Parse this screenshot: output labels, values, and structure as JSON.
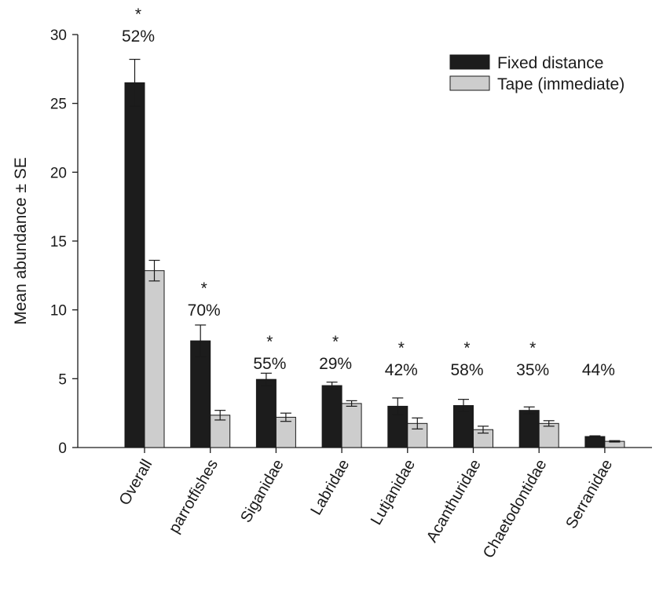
{
  "chart_data": {
    "type": "bar",
    "title": "",
    "xlabel": "",
    "ylabel": "Mean abundance ± SE",
    "ylim": [
      0,
      30
    ],
    "yticks": [
      0,
      5,
      10,
      15,
      20,
      25,
      30
    ],
    "grid": false,
    "legend_position": "top-right",
    "categories": [
      "Overall",
      "parrotfishes",
      "Siganidae",
      "Labridae",
      "Lutjanidae",
      "Acanthuridae",
      "Chaetodontidae",
      "Serranidae"
    ],
    "series": [
      {
        "name": "Fixed distance",
        "color": "#1c1c1c",
        "values": [
          26.5,
          7.75,
          4.95,
          4.5,
          3.0,
          3.05,
          2.7,
          0.8
        ],
        "se": [
          1.7,
          1.15,
          0.45,
          0.25,
          0.6,
          0.45,
          0.25,
          0.05
        ]
      },
      {
        "name": "Tape (immediate)",
        "color": "#cdcdcd",
        "values": [
          12.85,
          2.35,
          2.2,
          3.2,
          1.75,
          1.3,
          1.75,
          0.45
        ],
        "se": [
          0.75,
          0.35,
          0.3,
          0.2,
          0.4,
          0.25,
          0.2,
          0.05
        ]
      }
    ],
    "annotations": [
      {
        "category": "Overall",
        "percent": "52%",
        "star": "*"
      },
      {
        "category": "parrotfishes",
        "percent": "70%",
        "star": "*"
      },
      {
        "category": "Siganidae",
        "percent": "55%",
        "star": "*"
      },
      {
        "category": "Labridae",
        "percent": "29%",
        "star": "*"
      },
      {
        "category": "Lutjanidae",
        "percent": "42%",
        "star": "*"
      },
      {
        "category": "Acanthuridae",
        "percent": "58%",
        "star": "*"
      },
      {
        "category": "Chaetodontidae",
        "percent": "35%",
        "star": "*"
      },
      {
        "category": "Serranidae",
        "percent": "44%",
        "star": ""
      }
    ]
  }
}
